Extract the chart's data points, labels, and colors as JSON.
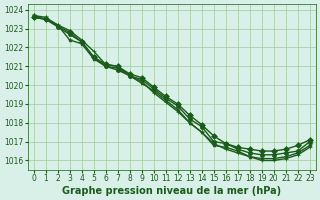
{
  "series": [
    {
      "x": [
        0,
        1,
        2,
        3,
        4,
        5,
        6,
        7,
        8,
        9,
        10,
        11,
        12,
        13,
        14,
        15,
        16,
        17,
        18,
        19,
        20,
        21,
        22,
        23
      ],
      "y": [
        1023.6,
        1023.5,
        1023.1,
        1022.7,
        1022.3,
        1021.5,
        1021.0,
        1020.8,
        1020.5,
        1020.3,
        1019.8,
        1019.3,
        1018.9,
        1018.2,
        1017.8,
        1017.0,
        1016.9,
        1016.6,
        1016.4,
        1016.3,
        1016.3,
        1016.4,
        1016.5,
        1017.0
      ],
      "marker": "o"
    },
    {
      "x": [
        0,
        1,
        2,
        3,
        4,
        5,
        6,
        7,
        8,
        9,
        10,
        11,
        12,
        13,
        14,
        15,
        16,
        17,
        18,
        19,
        20,
        21,
        22,
        23
      ],
      "y": [
        1023.7,
        1023.6,
        1023.2,
        1022.4,
        1022.2,
        1021.4,
        1021.0,
        1020.9,
        1020.5,
        1020.1,
        1019.7,
        1019.2,
        1018.7,
        1018.0,
        1017.5,
        1016.8,
        1016.7,
        1016.5,
        1016.2,
        1016.1,
        1016.1,
        1016.2,
        1016.4,
        1016.8
      ],
      "marker": "*"
    },
    {
      "x": [
        0,
        1,
        3,
        4,
        5,
        6,
        7,
        8,
        9,
        10,
        11,
        12,
        13,
        14,
        15,
        16,
        17,
        18,
        19,
        20,
        21,
        22,
        23
      ],
      "y": [
        1023.6,
        1023.5,
        1022.8,
        1022.3,
        1021.5,
        1021.1,
        1021.0,
        1020.6,
        1020.4,
        1019.9,
        1019.4,
        1019.0,
        1018.4,
        1017.9,
        1017.3,
        1016.9,
        1016.7,
        1016.6,
        1016.5,
        1016.5,
        1016.6,
        1016.8,
        1017.1
      ],
      "marker": "D"
    },
    {
      "x": [
        0,
        1,
        3,
        4,
        5,
        6,
        7,
        8,
        9,
        10,
        11,
        12,
        13,
        14,
        15,
        16,
        17,
        18,
        19,
        20,
        21,
        22,
        23
      ],
      "y": [
        1023.7,
        1023.5,
        1022.9,
        1022.4,
        1021.8,
        1021.1,
        1021.0,
        1020.5,
        1020.2,
        1019.6,
        1019.1,
        1018.6,
        1018.0,
        1017.5,
        1016.9,
        1016.6,
        1016.4,
        1016.2,
        1016.0,
        1016.0,
        1016.1,
        1016.3,
        1016.7
      ],
      "marker": "+"
    }
  ],
  "ylim": [
    1015.5,
    1024.3
  ],
  "yticks": [
    1016,
    1017,
    1018,
    1019,
    1020,
    1021,
    1022,
    1023,
    1024
  ],
  "xlim": [
    -0.5,
    23.5
  ],
  "xticks": [
    0,
    1,
    2,
    3,
    4,
    5,
    6,
    7,
    8,
    9,
    10,
    11,
    12,
    13,
    14,
    15,
    16,
    17,
    18,
    19,
    20,
    21,
    22,
    23
  ],
  "xlabel": "Graphe pression niveau de la mer (hPa)",
  "line_color": "#1a5c1a",
  "background_color": "#d8f0e8",
  "grid_color": "#a0c8a0",
  "marker_size": 3,
  "linewidth": 1.0,
  "tick_fontsize": 5.5,
  "xlabel_fontsize": 7
}
